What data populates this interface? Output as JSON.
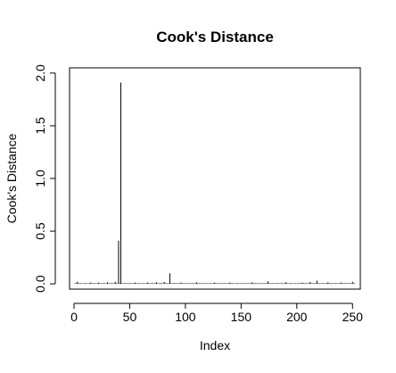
{
  "chart_data": {
    "type": "bar",
    "title": "Cook's Distance",
    "xlabel": "Index",
    "ylabel": "Cook's Distance",
    "xlim": [
      -4,
      257
    ],
    "ylim": [
      -0.05,
      2.05
    ],
    "x_ticks": [
      0,
      50,
      100,
      150,
      200,
      250
    ],
    "y_ticks": [
      0.0,
      0.5,
      1.0,
      1.5,
      2.0
    ],
    "x_tick_labels": [
      "0",
      "50",
      "100",
      "150",
      "200",
      "250"
    ],
    "y_tick_labels": [
      "0.0",
      "0.5",
      "1.0",
      "1.5",
      "2.0"
    ],
    "grid": false,
    "n_points": 252,
    "baseline_value": 0.005,
    "spikes": [
      {
        "x": 3,
        "y": 0.02
      },
      {
        "x": 15,
        "y": 0.012
      },
      {
        "x": 22,
        "y": 0.012
      },
      {
        "x": 30,
        "y": 0.015
      },
      {
        "x": 37,
        "y": 0.02
      },
      {
        "x": 40,
        "y": 0.41
      },
      {
        "x": 42,
        "y": 1.91
      },
      {
        "x": 55,
        "y": 0.012
      },
      {
        "x": 66,
        "y": 0.012
      },
      {
        "x": 74,
        "y": 0.015
      },
      {
        "x": 81,
        "y": 0.018
      },
      {
        "x": 86,
        "y": 0.1
      },
      {
        "x": 96,
        "y": 0.012
      },
      {
        "x": 110,
        "y": 0.015
      },
      {
        "x": 126,
        "y": 0.012
      },
      {
        "x": 140,
        "y": 0.012
      },
      {
        "x": 160,
        "y": 0.015
      },
      {
        "x": 174,
        "y": 0.025
      },
      {
        "x": 190,
        "y": 0.015
      },
      {
        "x": 205,
        "y": 0.012
      },
      {
        "x": 212,
        "y": 0.018
      },
      {
        "x": 218,
        "y": 0.03
      },
      {
        "x": 228,
        "y": 0.015
      },
      {
        "x": 240,
        "y": 0.012
      },
      {
        "x": 250,
        "y": 0.02
      }
    ]
  }
}
